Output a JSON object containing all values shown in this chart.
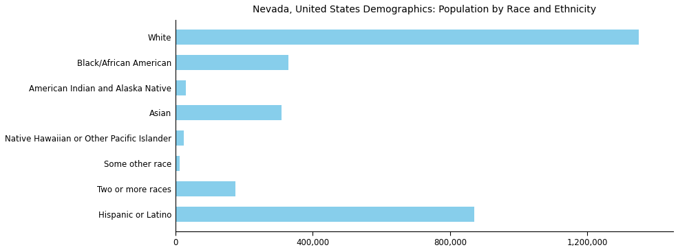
{
  "categories": [
    "White",
    "Black/African American",
    "American Indian and Alaska Native",
    "Asian",
    "Native Hawaiian or Other Pacific Islander",
    "Some other race",
    "Two or more races",
    "Hispanic or Latino"
  ],
  "values": [
    1350000,
    330000,
    30000,
    310000,
    25000,
    13000,
    175000,
    870000
  ],
  "bar_color": "#87CEEB",
  "title": "Nevada, United States Demographics: Population by Race and Ethnicity",
  "xlim": [
    0,
    1450000
  ],
  "xticks": [
    0,
    400000,
    800000,
    1200000
  ],
  "xticklabels": [
    "0",
    "400,000",
    "800,000",
    "1,200,000"
  ],
  "background_color": "#ffffff",
  "title_fontsize": 10,
  "tick_fontsize": 8.5,
  "label_fontsize": 8.5
}
